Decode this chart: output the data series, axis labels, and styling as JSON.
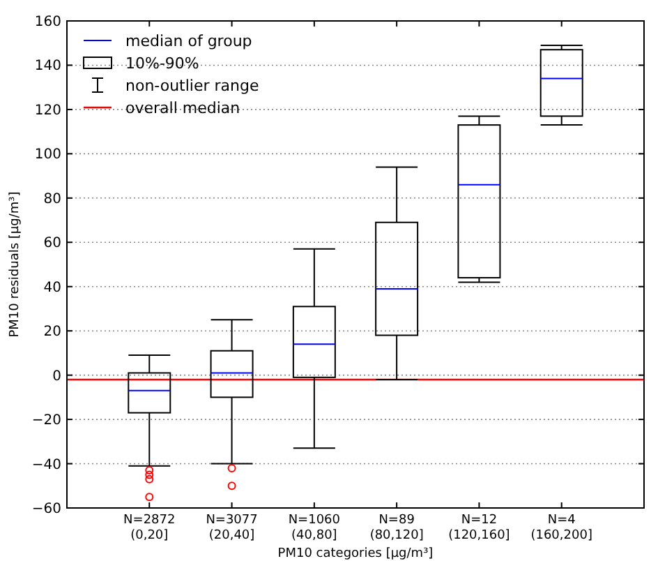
{
  "chart_data": {
    "type": "box",
    "xlabel": "PM10 categories [μg/m³]",
    "ylabel": "PM10 residuals [μg/m³]",
    "categories": [
      "N=2872\n(0,20]",
      "N=3077\n(20,40]",
      "N=1060\n(40,80]",
      "N=89\n(80,120]",
      "N=12\n(120,160]",
      "N=4\n(160,200]"
    ],
    "series": [
      {
        "name": "10%-90%",
        "color": "#000000",
        "boxes": [
          {
            "low": -41,
            "q1": -17,
            "median": -7,
            "q3": 1,
            "high": 9,
            "outliers": [
              -43,
              -45,
              -47,
              -55
            ]
          },
          {
            "low": -40,
            "q1": -10,
            "median": 1,
            "q3": 11,
            "high": 25,
            "outliers": [
              -42,
              -50
            ]
          },
          {
            "low": -33,
            "q1": -1,
            "median": 14,
            "q3": 31,
            "high": 57
          },
          {
            "low": -2,
            "q1": 18,
            "median": 39,
            "q3": 69,
            "high": 94
          },
          {
            "low": 42,
            "q1": 44,
            "median": 86,
            "q3": 113,
            "high": 117
          },
          {
            "low": 113,
            "q1": 117,
            "median": 134,
            "q3": 147,
            "high": 149
          }
        ]
      }
    ],
    "ref_lines": [
      {
        "axis": "y",
        "value": -2,
        "label": "overall median",
        "color": "#ff0000"
      }
    ],
    "annotations": [
      "median of group",
      "non-outlier range"
    ],
    "ylim": [
      -60,
      160
    ],
    "yticks": [
      -60,
      -40,
      -20,
      0,
      20,
      40,
      60,
      80,
      100,
      120,
      140,
      160
    ],
    "grid": "y",
    "legend": "top left"
  }
}
